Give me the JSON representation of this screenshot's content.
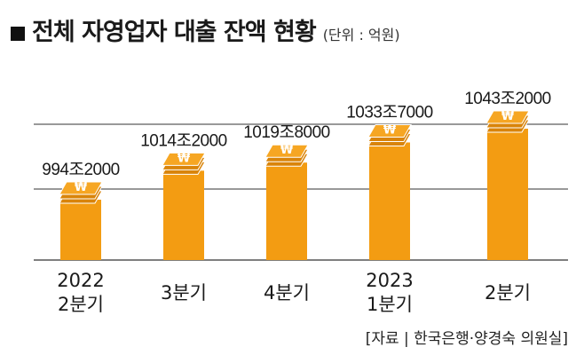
{
  "header": {
    "title": "전체 자영업자 대출 잔액 현황",
    "unit": "(단위 : 억원)"
  },
  "source": "[자료 | 한국은행·양경숙 의원실]",
  "colors": {
    "bar": "#F39C12",
    "bar_shadow": "#D9840A",
    "icon": "#F6A623",
    "grid": "#333333"
  },
  "chart_data": {
    "type": "bar",
    "categories": [
      [
        "2022",
        "2분기"
      ],
      [
        "3분기"
      ],
      [
        "4분기"
      ],
      [
        "2023",
        "1분기"
      ],
      [
        "2분기"
      ]
    ],
    "values": [
      9942000,
      10142000,
      10198000,
      10337000,
      10432000
    ],
    "data_labels": [
      "994조2000",
      "1014조2000",
      "1019조8000",
      "1033조7000",
      "1043조2000"
    ],
    "grid": true,
    "icon": "won-coin-stack-icon"
  }
}
